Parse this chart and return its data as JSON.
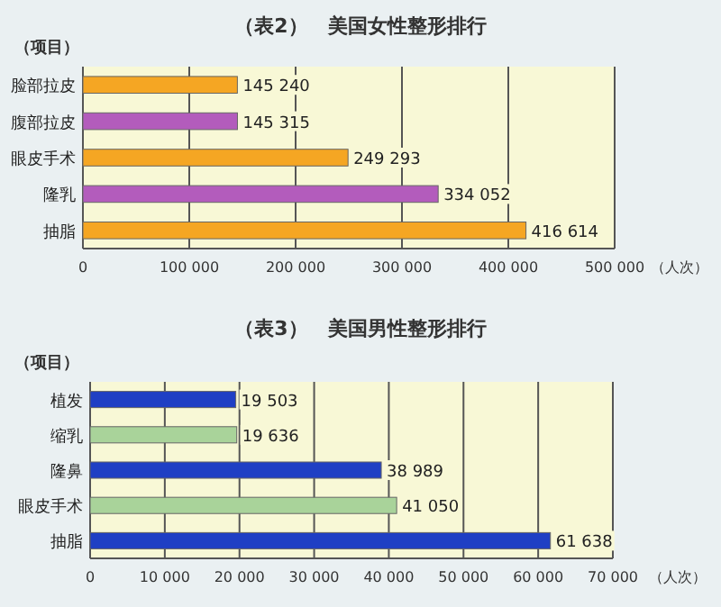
{
  "chart_data": [
    {
      "type": "bar",
      "orientation": "horizontal",
      "title": "（表2）　美国女性整形排行",
      "ylabel": "（项目）",
      "xlabel": "（人次）",
      "categories": [
        "脸部拉皮",
        "腹部拉皮",
        "眼皮手术",
        "隆乳",
        "抽脂"
      ],
      "values": [
        145240,
        145315,
        249293,
        334052,
        416614
      ],
      "colors": [
        "#f5a623",
        "#b35cbc",
        "#f5a623",
        "#b35cbc",
        "#f5a623"
      ],
      "value_labels": [
        "145 240",
        "145 315",
        "249 293",
        "334 052",
        "416 614"
      ],
      "xlim": [
        0,
        500000
      ],
      "xticks": [
        0,
        {
          "value": 100000,
          "label": "100 000"
        },
        {
          "value": 200000,
          "label": "200 000"
        },
        {
          "value": 300000,
          "label": "300 000"
        },
        {
          "value": 400000,
          "label": "400 000"
        },
        {
          "value": 500000,
          "label": "500 000"
        }
      ],
      "grid": "x"
    },
    {
      "type": "bar",
      "orientation": "horizontal",
      "title": "（表3）　美国男性整形排行",
      "ylabel": "（项目）",
      "xlabel": "（人次）",
      "categories": [
        "植发",
        "缩乳",
        "隆鼻",
        "眼皮手术",
        "抽脂"
      ],
      "values": [
        19503,
        19636,
        38989,
        41050,
        61638
      ],
      "colors": [
        "#1f3fc4",
        "#a9d39a",
        "#1f3fc4",
        "#a9d39a",
        "#1f3fc4"
      ],
      "value_labels": [
        "19 503",
        "19 636",
        "38 989",
        "41 050",
        "61 638"
      ],
      "xlim": [
        0,
        70000
      ],
      "xticks": [
        0,
        {
          "value": 10000,
          "label": "10 000"
        },
        {
          "value": 20000,
          "label": "20 000"
        },
        {
          "value": 30000,
          "label": "30 000"
        },
        {
          "value": 40000,
          "label": "40 000"
        },
        {
          "value": 50000,
          "label": "50 000"
        },
        {
          "value": 60000,
          "label": "60 000"
        },
        {
          "value": 70000,
          "label": "70 000"
        }
      ],
      "grid": "x"
    }
  ]
}
